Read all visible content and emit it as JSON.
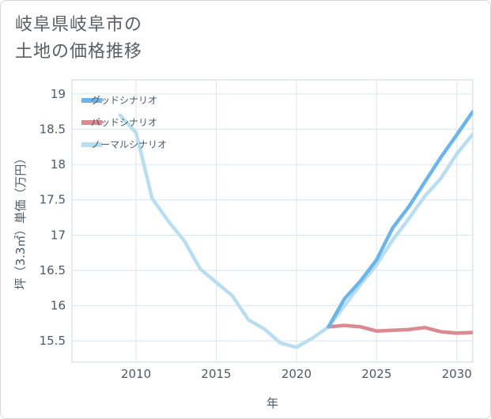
{
  "title_lines": [
    "岐阜県岐阜市の",
    "土地の価格推移"
  ],
  "chart_data": {
    "type": "line",
    "xlabel": "年",
    "ylabel": "坪（3.3㎡）単価（万円）",
    "xlim": [
      2006,
      2031
    ],
    "ylim": [
      15.2,
      19.2
    ],
    "x_ticks": [
      2010,
      2015,
      2020,
      2025,
      2030
    ],
    "y_ticks": [
      15.5,
      16,
      16.5,
      17,
      17.5,
      18,
      18.5,
      19
    ],
    "grid": true,
    "legend_position": "top-left",
    "series": [
      {
        "name": "グッドシナリオ",
        "color": "#6bb5ea",
        "x": [
          2022,
          2023,
          2024,
          2025,
          2026,
          2027,
          2028,
          2029,
          2030,
          2031
        ],
        "y": [
          15.7,
          16.1,
          16.35,
          16.65,
          17.1,
          17.4,
          17.75,
          18.1,
          18.42,
          18.75
        ]
      },
      {
        "name": "バッドシナリオ",
        "color": "#dc8a92",
        "x": [
          2022,
          2023,
          2024,
          2025,
          2026,
          2027,
          2028,
          2029,
          2030,
          2031
        ],
        "y": [
          15.7,
          15.72,
          15.7,
          15.64,
          15.65,
          15.66,
          15.69,
          15.63,
          15.61,
          15.62
        ]
      },
      {
        "name": "ノーマルシナリオ",
        "color": "#b9def0",
        "x": [
          2009,
          2010,
          2011,
          2012,
          2013,
          2014,
          2015,
          2016,
          2017,
          2018,
          2019,
          2020,
          2021,
          2022,
          2023,
          2024,
          2025,
          2026,
          2027,
          2028,
          2029,
          2030,
          2031
        ],
        "y": [
          18.7,
          18.45,
          17.52,
          17.2,
          16.92,
          16.52,
          16.33,
          16.14,
          15.8,
          15.67,
          15.47,
          15.41,
          15.54,
          15.7,
          16.0,
          16.3,
          16.58,
          16.93,
          17.23,
          17.55,
          17.8,
          18.15,
          18.43
        ]
      }
    ]
  }
}
